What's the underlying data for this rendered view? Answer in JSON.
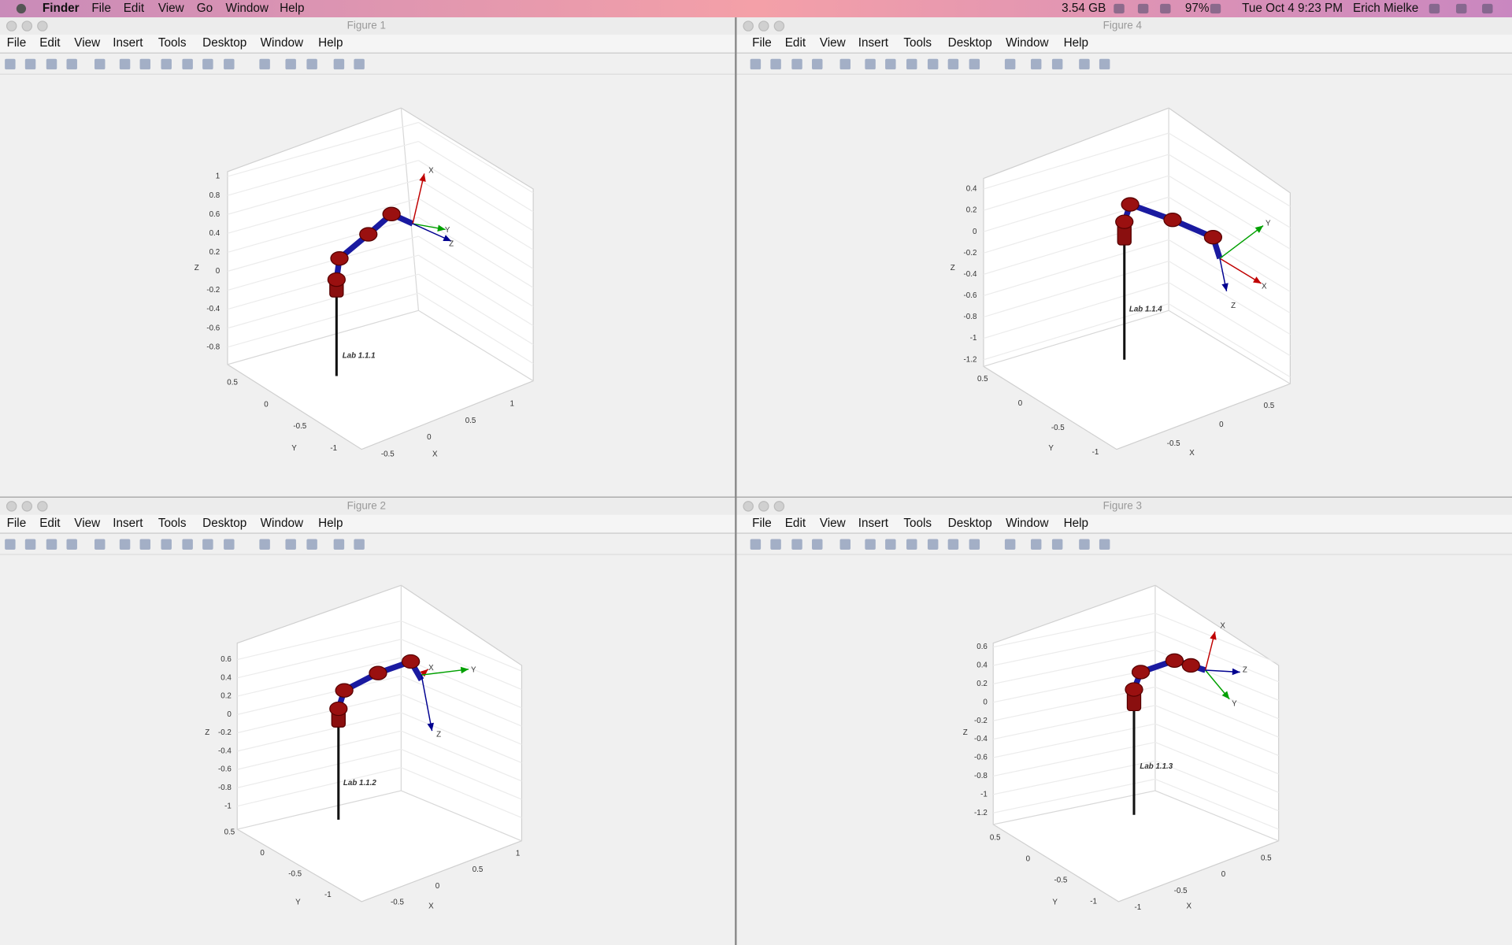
{
  "menubar": {
    "app": "Finder",
    "items": [
      "File",
      "Edit",
      "View",
      "Go",
      "Window",
      "Help"
    ],
    "status": {
      "memory": "3.54 GB",
      "battery": "97%",
      "datetime": "Tue Oct 4  9:23 PM",
      "user": "Erich Mielke"
    }
  },
  "figure_menu": [
    "File",
    "Edit",
    "View",
    "Insert",
    "Tools",
    "Desktop",
    "Window",
    "Help"
  ],
  "windows": [
    {
      "title": "Figure 1",
      "plot": {
        "zticks": [
          "1",
          "0.8",
          "0.6",
          "0.4",
          "0.2",
          "0",
          "-0.2",
          "-0.4",
          "-0.6",
          "-0.8"
        ],
        "yticks": [
          "0.5",
          "0",
          "-0.5",
          "-1"
        ],
        "xticks": [
          "-0.5",
          "0",
          "0.5",
          "1"
        ],
        "zlabel": "Z",
        "ylabel": "Y",
        "xlabel": "X",
        "annotation": "Lab 1.1.1",
        "frame_labels": [
          "X",
          "Y",
          "Z"
        ]
      }
    },
    {
      "title": "Figure 4",
      "plot": {
        "zticks": [
          "0.4",
          "0.2",
          "0",
          "-0.2",
          "-0.4",
          "-0.6",
          "-0.8",
          "-1",
          "-1.2"
        ],
        "yticks": [
          "0.5",
          "0",
          "-0.5",
          "-1"
        ],
        "xticks": [
          "-0.5",
          "0",
          "0.5"
        ],
        "zlabel": "Z",
        "ylabel": "Y",
        "xlabel": "X",
        "annotation": "Lab 1.1.4",
        "frame_labels": [
          "X",
          "Y",
          "Z"
        ]
      }
    },
    {
      "title": "Figure 2",
      "plot": {
        "zticks": [
          "0.6",
          "0.4",
          "0.2",
          "0",
          "-0.2",
          "-0.4",
          "-0.6",
          "-0.8",
          "-1"
        ],
        "yticks": [
          "0.5",
          "0",
          "-0.5",
          "-1"
        ],
        "xticks": [
          "-0.5",
          "0",
          "0.5",
          "1"
        ],
        "zlabel": "Z",
        "ylabel": "Y",
        "xlabel": "X",
        "annotation": "Lab 1.1.2",
        "frame_labels": [
          "X",
          "Y",
          "Z"
        ]
      }
    },
    {
      "title": "Figure 3",
      "plot": {
        "zticks": [
          "0.6",
          "0.4",
          "0.2",
          "0",
          "-0.2",
          "-0.4",
          "-0.6",
          "-0.8",
          "-1",
          "-1.2"
        ],
        "yticks": [
          "0.5",
          "0",
          "-0.5",
          "-1"
        ],
        "xticks": [
          "-1",
          "-0.5",
          "0",
          "0.5"
        ],
        "zlabel": "Z",
        "ylabel": "Y",
        "xlabel": "X",
        "annotation": "Lab 1.1.3",
        "frame_labels": [
          "X",
          "Y",
          "Z"
        ]
      }
    }
  ]
}
